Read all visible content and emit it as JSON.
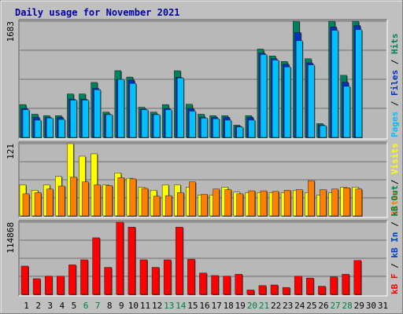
{
  "chart_data": {
    "type": "bar",
    "title": "Daily usage for November 2021",
    "categories": [
      "1",
      "2",
      "3",
      "4",
      "5",
      "6",
      "7",
      "8",
      "9",
      "10",
      "11",
      "12",
      "13",
      "14",
      "15",
      "16",
      "17",
      "18",
      "19",
      "20",
      "21",
      "22",
      "23",
      "24",
      "25",
      "26",
      "27",
      "28",
      "29",
      "30",
      "31"
    ],
    "weekend_days": [
      "6",
      "7",
      "13",
      "14",
      "20",
      "21",
      "27",
      "28"
    ],
    "colors": {
      "frame": "#c0c0c0",
      "plot_bg": "#b8b8b8",
      "hits": "#00805c",
      "files": "#0030c0",
      "pages": "#00c0ff",
      "visits": "#ffff00",
      "sites": "#ff8000",
      "kb_f": "#ff0000",
      "kb_in": "#0040c0",
      "kb_out": "#008040",
      "weekday_label": "#000000",
      "weekend_label": "#008040"
    },
    "panels": [
      {
        "id": "traffic",
        "max_label": "1683",
        "ylim": [
          0,
          1683
        ],
        "legend": [
          {
            "text": "Pages",
            "color": "#00c0ff"
          },
          {
            "text": " / ",
            "color": "#000000"
          },
          {
            "text": "Files",
            "color": "#0030c0"
          },
          {
            "text": " / ",
            "color": "#000000"
          },
          {
            "text": "Hits",
            "color": "#00805c"
          }
        ],
        "series": [
          {
            "name": "Hits",
            "color": "#00805c",
            "values": [
              476,
              336,
              315,
              315,
              630,
              630,
              797,
              367,
              967,
              874,
              437,
              367,
              476,
              966,
              480,
              336,
              315,
              315,
              178,
              315,
              1280,
              1180,
              1100,
              1683,
              1140,
              200,
              1683,
              900,
              1683,
              0,
              0
            ]
          },
          {
            "name": "Files",
            "color": "#0030c0",
            "values": [
              420,
              290,
              290,
              290,
              555,
              555,
              710,
              336,
              840,
              830,
              410,
              336,
              420,
              870,
              420,
              290,
              290,
              290,
              160,
              290,
              1220,
              1140,
              1060,
              1520,
              1080,
              180,
              1600,
              800,
              1620,
              0,
              0
            ]
          },
          {
            "name": "Pages",
            "color": "#00c0ff",
            "values": [
              400,
              250,
              280,
              260,
              540,
              540,
              690,
              330,
              840,
              780,
              400,
              330,
              400,
              860,
              380,
              280,
              270,
              250,
              150,
              250,
              1200,
              1120,
              1020,
              1400,
              1050,
              170,
              1550,
              740,
              1560,
              0,
              0
            ]
          }
        ]
      },
      {
        "id": "visitors",
        "max_label": "121",
        "ylim": [
          0,
          121
        ],
        "legend": [
          {
            "text": "Sites",
            "color": "#ff8000"
          },
          {
            "text": " / ",
            "color": "#000000"
          },
          {
            "text": "Visits",
            "color": "#ffff00"
          }
        ],
        "series": [
          {
            "name": "Visits",
            "color": "#ffff00",
            "values": [
              52,
              43,
              52,
              66,
              121,
              100,
              104,
              52,
              72,
              63,
              48,
              43,
              52,
              52,
              48,
              35,
              35,
              48,
              40,
              39,
              39,
              39,
              39,
              43,
              39,
              35,
              39,
              48,
              48,
              0,
              0
            ]
          },
          {
            "name": "Sites",
            "color": "#ff8000",
            "values": [
              37,
              39,
              45,
              50,
              65,
              57,
              52,
              51,
              64,
              62,
              46,
              33,
              34,
              39,
              57,
              36,
              45,
              44,
              37,
              42,
              42,
              41,
              43,
              44,
              59,
              44,
              45,
              47,
              45,
              0,
              0
            ]
          }
        ]
      },
      {
        "id": "kbytes",
        "max_label": "114868",
        "ylim": [
          0,
          114868
        ],
        "legend": [
          {
            "text": "kB F",
            "color": "#ff0000"
          },
          {
            "text": " / ",
            "color": "#000000"
          },
          {
            "text": "kB In",
            "color": "#0040c0"
          },
          {
            "text": " / ",
            "color": "#000000"
          },
          {
            "text": "kB Out",
            "color": "#008040"
          }
        ],
        "series": [
          {
            "name": "kB F",
            "color": "#ff0000",
            "values": [
              45000,
              25000,
              29000,
              29000,
              47000,
              55000,
              90000,
              43000,
              114868,
              107000,
              55000,
              43000,
              55000,
              107000,
              56000,
              34000,
              30000,
              29000,
              32000,
              7000,
              14000,
              15000,
              11000,
              29000,
              26000,
              13000,
              28000,
              32000,
              54000,
              0,
              0
            ]
          }
        ]
      }
    ]
  }
}
